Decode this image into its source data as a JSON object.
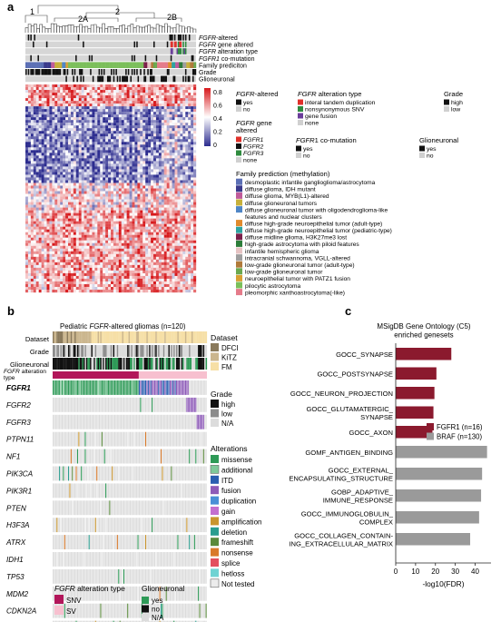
{
  "panels": {
    "a": "a",
    "b": "b",
    "c": "c"
  },
  "panel_a": {
    "cluster_labels": [
      "1",
      "2",
      "2A",
      "2B"
    ],
    "track_labels": [
      {
        "it": "FGFR",
        "rest": "-altered"
      },
      {
        "it": "FGFR",
        "rest": " gene altered"
      },
      {
        "it": "FGFR",
        "rest": " alteration type"
      },
      {
        "it": "FGFR1",
        "rest": " co-mutation"
      },
      {
        "it": "",
        "rest": "Family prediciton"
      },
      {
        "it": "",
        "rest": "Grade"
      },
      {
        "it": "",
        "rest": "Glioneuronal"
      }
    ],
    "colorbar": {
      "ticks": [
        "0.8",
        "0.6",
        "0.4",
        "0.2",
        "0"
      ],
      "colors": {
        "high": "#d7191c",
        "mid": "#ffffff",
        "low": "#2c2c8f"
      }
    },
    "legend_fgfr_altered": {
      "title_it": "FGFR",
      "title_rest": "-altered",
      "items": [
        {
          "label": "yes",
          "color": "#111111"
        },
        {
          "label": "no",
          "color": "#d0d0d0"
        }
      ]
    },
    "legend_alt_type": {
      "title_it": "FGFR",
      "title_rest": " alteration type",
      "items": [
        {
          "label": "interal tandem duplication",
          "color": "#e0302a"
        },
        {
          "label": "nonsynonymous SNV",
          "color": "#2e8b3e"
        },
        {
          "label": "gene fusion",
          "color": "#6a3d9a"
        },
        {
          "label": "none",
          "color": "#d0d0d0"
        }
      ]
    },
    "legend_grade": {
      "title": "Grade",
      "items": [
        {
          "label": "high",
          "color": "#111111"
        },
        {
          "label": "low",
          "color": "#d0d0d0"
        }
      ]
    },
    "legend_gene": {
      "title_it": "FGFR",
      "title_rest": " gene",
      "title_line2": "altered",
      "items": [
        {
          "label": "FGFR1",
          "color": "#e0302a",
          "italic": true
        },
        {
          "label": "FGFR2",
          "color": "#111111",
          "italic": true
        },
        {
          "label": "FGFR3",
          "color": "#2e8b3e",
          "italic": true
        },
        {
          "label": "none",
          "color": "#d0d0d0",
          "italic": false
        }
      ]
    },
    "legend_comut": {
      "title_it": "FGFR",
      "title_rest": "1 co-mutation",
      "items": [
        {
          "label": "yes",
          "color": "#111111"
        },
        {
          "label": "no",
          "color": "#d0d0d0"
        }
      ]
    },
    "legend_glioneuronal": {
      "title": "Glioneuronal",
      "items": [
        {
          "label": "yes",
          "color": "#111111"
        },
        {
          "label": "no",
          "color": "#d0d0d0"
        }
      ]
    },
    "legend_family": {
      "title": "Family prediction (methylation)",
      "items": [
        {
          "label": "desmoplastic infantile ganglioglioma/astrocytoma",
          "color": "#5b6fb5"
        },
        {
          "label": "diffuse glioma, IDH mutant",
          "color": "#3a3a8c"
        },
        {
          "label": "diffuse glioma, MYB(L1)-altered",
          "color": "#c05b9a"
        },
        {
          "label": "diffuse glioneuronal tumors",
          "color": "#c7b03a"
        },
        {
          "label": "diffuse glioneuronal tumor with oligodendroglioma-like",
          "label2": "features and nuclear clusters",
          "color": "#4f86c6"
        },
        {
          "label": "diffuse high-grade neuroepithelial tumor (adult-type)",
          "color": "#e08a2c"
        },
        {
          "label": "diffuse high-grade neuroepithelial tumor (pediatric-type)",
          "color": "#2ea3a0"
        },
        {
          "label": "diffuse midline glioma, H3K27me3 lost",
          "color": "#7a1f4a"
        },
        {
          "label": "high-grade astrocytoma with piloid features",
          "color": "#2c7d3a"
        },
        {
          "label": "infantile hemispheric glioma",
          "color": "#e6c3c3"
        },
        {
          "label": "intracranial schwannoma, VGLL-altered",
          "color": "#9e9e9e"
        },
        {
          "label": "low-grade glioneuronal tumor (adult-type)",
          "color": "#b07a3a"
        },
        {
          "label": "low-grade glioneuronal tumor",
          "color": "#6aa84f"
        },
        {
          "label": "neuroepithelial tumor with PATZ1 fusion",
          "color": "#d9a032"
        },
        {
          "label": "pilocytic astrocytoma",
          "color": "#7bbf5a"
        },
        {
          "label": "pleomorphic xanthoastrocytoma(-like)",
          "color": "#e57b8a"
        }
      ]
    }
  },
  "panel_b": {
    "title_pre": "Pediatric ",
    "title_it": "FGFR",
    "title_post": "-altered gliomas (n=120)",
    "track_labels": [
      "Dataset",
      "Grade",
      "Glioneuronal"
    ],
    "alt_type_label_it": "FGFR",
    "alt_type_label_rest": " alteration",
    "alt_type_label_line2": "type",
    "genes": [
      "FGFR1",
      "FGFR2",
      "FGFR3",
      "PTPN11",
      "NF1",
      "PIK3CA",
      "PIK3R1",
      "PTEN",
      "H3F3A",
      "ATRX",
      "IDH1",
      "TP53",
      "MDM2",
      "CDKN2A",
      "CDK4"
    ],
    "legend_dataset": {
      "title": "Dataset",
      "items": [
        {
          "label": "DFCI",
          "color": "#8a7a5c"
        },
        {
          "label": "KiTZ",
          "color": "#cbb68e"
        },
        {
          "label": "FM",
          "color": "#f6dfa6"
        }
      ]
    },
    "legend_grade": {
      "title": "Grade",
      "items": [
        {
          "label": "high",
          "color": "#111111"
        },
        {
          "label": "low",
          "color": "#8c8c8c"
        },
        {
          "label": "N/A",
          "color": "#dcdcdc"
        }
      ]
    },
    "legend_alterations": {
      "title": "Alterations",
      "items": [
        {
          "label": "missense",
          "color": "#2e9a57"
        },
        {
          "label": "additional",
          "color": "#7fc99a"
        },
        {
          "label": "ITD",
          "color": "#2a5fb0"
        },
        {
          "label": "fusion",
          "color": "#8e5bb8"
        },
        {
          "label": "duplication",
          "color": "#4a8fd6"
        },
        {
          "label": "gain",
          "color": "#c36fcf"
        },
        {
          "label": "amplification",
          "color": "#c9952e"
        },
        {
          "label": "deletion",
          "color": "#2a9d8f"
        },
        {
          "label": "frameshift",
          "color": "#5a8a3c"
        },
        {
          "label": "nonsense",
          "color": "#d97a2b"
        },
        {
          "label": "splice",
          "color": "#e3505f"
        },
        {
          "label": "hetloss",
          "color": "#6fd3d3"
        },
        {
          "label": "Not tested",
          "color": "#ececec"
        }
      ]
    },
    "legend_alt_type": {
      "title_it": "FGFR",
      "title_rest": " alteration type",
      "items": [
        {
          "label": "SNV",
          "color": "#b2165a"
        },
        {
          "label": "SV",
          "color": "#f7c0cf"
        }
      ]
    },
    "legend_glioneuronal": {
      "title": "Glioneuronal",
      "items": [
        {
          "label": "yes",
          "color": "#2e9a57"
        },
        {
          "label": "no",
          "color": "#111111"
        },
        {
          "label": "N/A",
          "color": "#dcdcdc"
        }
      ]
    }
  },
  "chart_data": {
    "type": "bar",
    "title": "MSigDB Gene Ontology (C5)\nenriched genesets",
    "xlabel": "-log10(FDR)",
    "ylabel": "",
    "xlim": [
      0,
      48
    ],
    "xticks": [
      "0",
      "10",
      "20",
      "30",
      "40"
    ],
    "categories": [
      "GOCC_SYNAPSE",
      "GOCC_POSTSYNAPSE",
      "GOCC_NEURON_PROJECTION",
      "GOCC_GLUTAMATERGIC_\nSYNAPSE",
      "GOCC_AXON",
      "GOMF_ANTIGEN_BINDING",
      "GOCC_EXTERNAL_\nENCAPSULATING_STRUCTURE",
      "GOBP_ADAPTIVE_\nIMMUNE_RESPONSE",
      "GOCC_IMMUNOGLOBULIN_\nCOMPLEX",
      "GOCC_COLLAGEN_CONTAIN-\nING_EXTRACELLULAR_MATRIX"
    ],
    "values": [
      28,
      20.5,
      19.5,
      19,
      18.5,
      46,
      43.5,
      43,
      42,
      37.5
    ],
    "groups": [
      "FGFR1",
      "FGFR1",
      "FGFR1",
      "FGFR1",
      "FGFR1",
      "BRAF",
      "BRAF",
      "BRAF",
      "BRAF",
      "BRAF"
    ],
    "legend": [
      {
        "name": "FGFR1 (n=16)",
        "group": "FGFR1",
        "color": "#8b1a2e"
      },
      {
        "name": "BRAF (n=130)",
        "group": "BRAF",
        "color": "#9a9a9a"
      }
    ]
  }
}
